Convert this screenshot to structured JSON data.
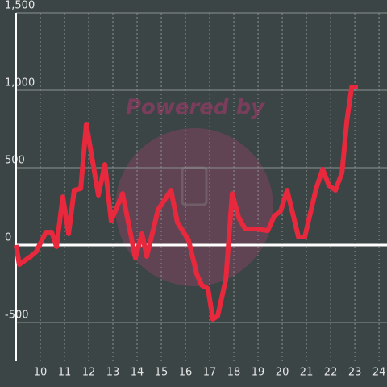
{
  "chart_data": {
    "type": "line",
    "watermark": "Powered by",
    "x": [
      9,
      9.13,
      9.6,
      9.83,
      10.23,
      10.47,
      10.67,
      10.93,
      11.17,
      11.4,
      11.67,
      11.9,
      12.4,
      12.67,
      12.93,
      13.4,
      13.93,
      14.2,
      14.4,
      14.87,
      15.4,
      15.67,
      16.13,
      16.47,
      16.67,
      16.93,
      17.13,
      17.33,
      17.67,
      17.93,
      18.2,
      18.47,
      18.93,
      19.4,
      19.67,
      19.93,
      20.2,
      20.67,
      20.93,
      21.4,
      21.67,
      21.93,
      22.2,
      22.47,
      22.67,
      22.87,
      23.13
    ],
    "series": [
      {
        "color": "#e8283c",
        "values": [
          0,
          -125,
          -73,
          -42,
          83,
          83,
          -10,
          312,
          73,
          354,
          365,
          781,
          323,
          521,
          156,
          333,
          -83,
          73,
          -73,
          229,
          354,
          146,
          31,
          -188,
          -260,
          -281,
          -479,
          -458,
          -219,
          333,
          177,
          104,
          104,
          94,
          188,
          219,
          354,
          52,
          52,
          365,
          490,
          385,
          354,
          469,
          802,
          1021,
          1021
        ]
      }
    ],
    "xlim": [
      9,
      24.33
    ],
    "xticks": [
      10,
      11,
      12,
      13,
      14,
      15,
      16,
      17,
      18,
      19,
      20,
      21,
      22,
      23,
      24
    ],
    "ylim": [
      -750,
      1500
    ],
    "yticks": [
      -500,
      0,
      500,
      {
        "value": 1000,
        "label": "1,000"
      },
      {
        "value": 1500,
        "label": "1,500"
      }
    ],
    "grid": true
  }
}
